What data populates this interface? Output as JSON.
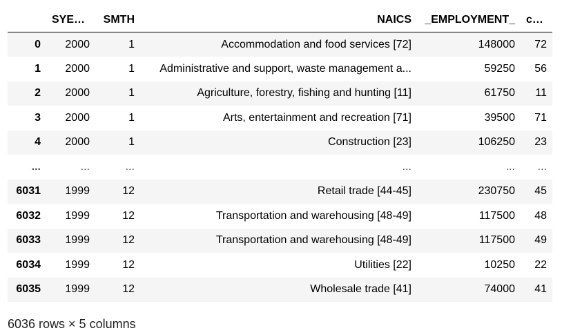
{
  "table": {
    "columns": [
      "",
      "SYEAR",
      "SMTH",
      "NAICS",
      "_EMPLOYMENT_",
      "code"
    ],
    "rows": [
      [
        "0",
        "2000",
        "1",
        "Accommodation and food services [72]",
        "148000",
        "72"
      ],
      [
        "1",
        "2000",
        "1",
        "Administrative and support, waste management a...",
        "59250",
        "56"
      ],
      [
        "2",
        "2000",
        "1",
        "Agriculture, forestry, fishing and hunting [11]",
        "61750",
        "11"
      ],
      [
        "3",
        "2000",
        "1",
        "Arts, entertainment and recreation [71]",
        "39500",
        "71"
      ],
      [
        "4",
        "2000",
        "1",
        "Construction [23]",
        "106250",
        "23"
      ],
      [
        "...",
        "...",
        "...",
        "...",
        "...",
        "..."
      ],
      [
        "6031",
        "1999",
        "12",
        "Retail trade [44-45]",
        "230750",
        "45"
      ],
      [
        "6032",
        "1999",
        "12",
        "Transportation and warehousing [48-49]",
        "117500",
        "48"
      ],
      [
        "6033",
        "1999",
        "12",
        "Transportation and warehousing [48-49]",
        "117500",
        "49"
      ],
      [
        "6034",
        "1999",
        "12",
        "Utilities [22]",
        "10250",
        "22"
      ],
      [
        "6035",
        "1999",
        "12",
        "Wholesale trade [41]",
        "74000",
        "41"
      ]
    ]
  },
  "shape_text": "6036 rows × 5 columns"
}
